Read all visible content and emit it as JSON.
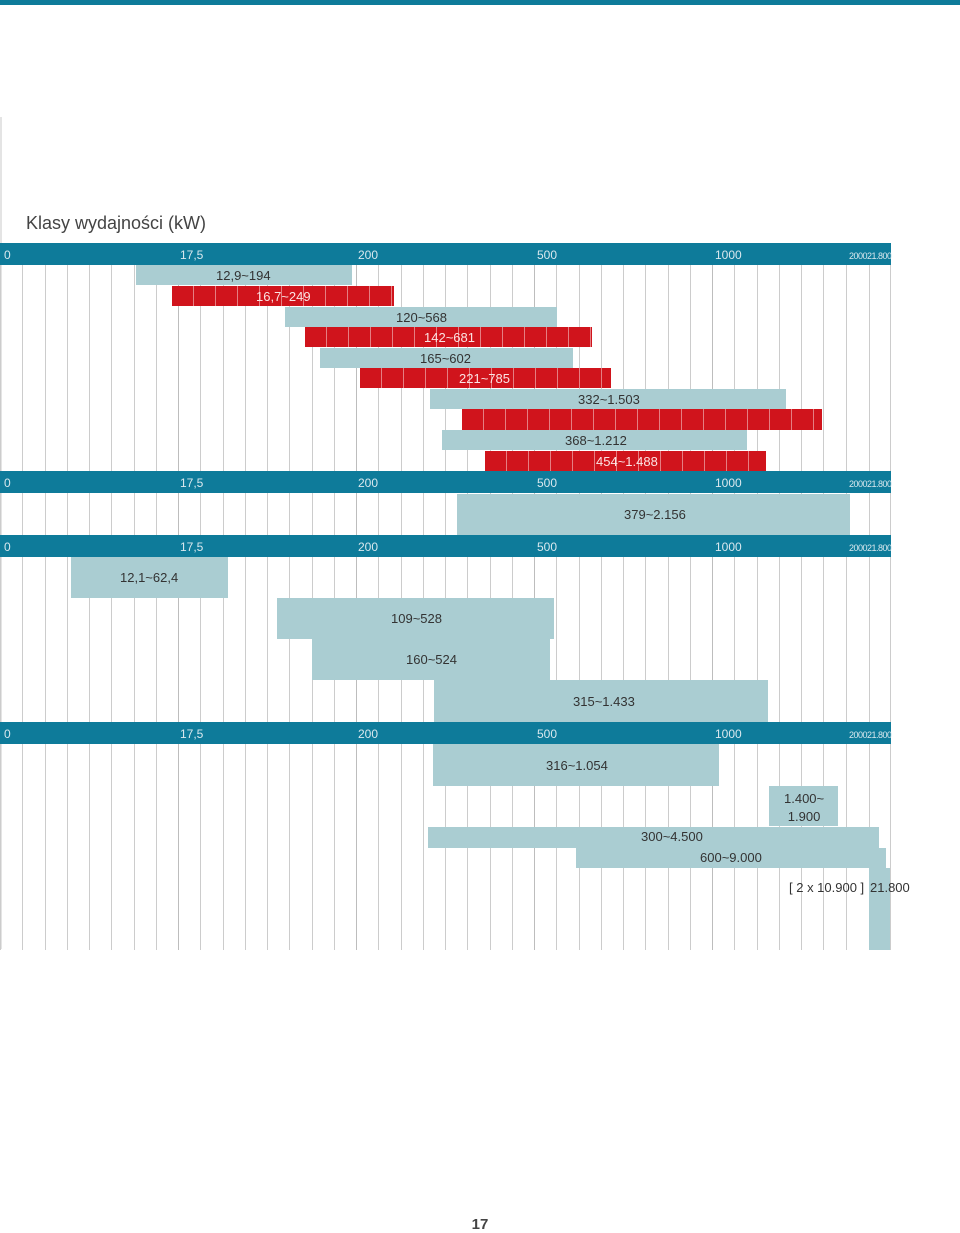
{
  "chart_data": {
    "type": "bar",
    "title": "Klasy wydajności (kW)",
    "xlabel": "",
    "ylabel": "",
    "scale": "piecewise",
    "xlim": [
      0,
      21800
    ],
    "grid": true,
    "colors": {
      "axis": "#0e7b9a",
      "teal": "#aacdd2",
      "red": "#d0141c"
    },
    "axis_ticks": [
      {
        "value": 0,
        "label": "0"
      },
      {
        "value": 17.5,
        "label": "17,5"
      },
      {
        "value": 200,
        "label": "200"
      },
      {
        "value": 500,
        "label": "500"
      },
      {
        "value": 1000,
        "label": "1000"
      },
      {
        "value": 2000,
        "label": "2000"
      },
      {
        "value": 21800,
        "label": "21.800"
      }
    ],
    "groups": [
      {
        "bars": [
          {
            "min": 12.9,
            "max": 194,
            "label": "12,9~194",
            "color": "teal"
          },
          {
            "min": 16.7,
            "max": 249,
            "label": "16,7~249",
            "color": "red"
          },
          {
            "min": 120,
            "max": 568,
            "label": "120~568",
            "color": "teal"
          },
          {
            "min": 142,
            "max": 681,
            "label": "142~681",
            "color": "red"
          },
          {
            "min": 165,
            "max": 602,
            "label": "165~602",
            "color": "teal"
          },
          {
            "min": 221,
            "max": 785,
            "label": "221~785",
            "color": "red"
          },
          {
            "min": 332,
            "max": 1503,
            "label": "332~1.503",
            "color": "teal"
          },
          {
            "min": 401,
            "max": 1680,
            "label": "",
            "color": "red"
          },
          {
            "min": 368,
            "max": 1212,
            "label": "368~1.212",
            "color": "teal"
          },
          {
            "min": 454,
            "max": 1488,
            "label": "454~1.488",
            "color": "red"
          }
        ]
      },
      {
        "bars": [
          {
            "min": 379,
            "max": 2156,
            "label": "379~2.156",
            "color": "teal"
          }
        ]
      },
      {
        "bars": [
          {
            "min": 12.1,
            "max": 62.4,
            "label": "12,1~62,4",
            "color": "teal"
          },
          {
            "min": 109,
            "max": 528,
            "label": "109~528",
            "color": "teal"
          },
          {
            "min": 160,
            "max": 524,
            "label": "160~524",
            "color": "teal"
          },
          {
            "min": 315,
            "max": 1433,
            "label": "315~1.433",
            "color": "teal"
          }
        ]
      },
      {
        "bars": [
          {
            "min": 316,
            "max": 1054,
            "label": "316~1.054",
            "color": "teal"
          },
          {
            "min": 1400,
            "max": 1900,
            "label": "1.400~\n1.900",
            "color": "teal"
          },
          {
            "min": 300,
            "max": 4500,
            "label": "300~4.500",
            "color": "teal"
          },
          {
            "min": 600,
            "max": 9000,
            "label": "600~9.000",
            "color": "teal"
          },
          {
            "min": 21800,
            "max": 21800,
            "label": "[ 2 x 10.900 ]",
            "color": "teal"
          },
          {
            "min": 21800,
            "max": 21800,
            "label": "21.800",
            "color": "teal"
          }
        ]
      }
    ]
  },
  "page": {
    "number": "17"
  }
}
